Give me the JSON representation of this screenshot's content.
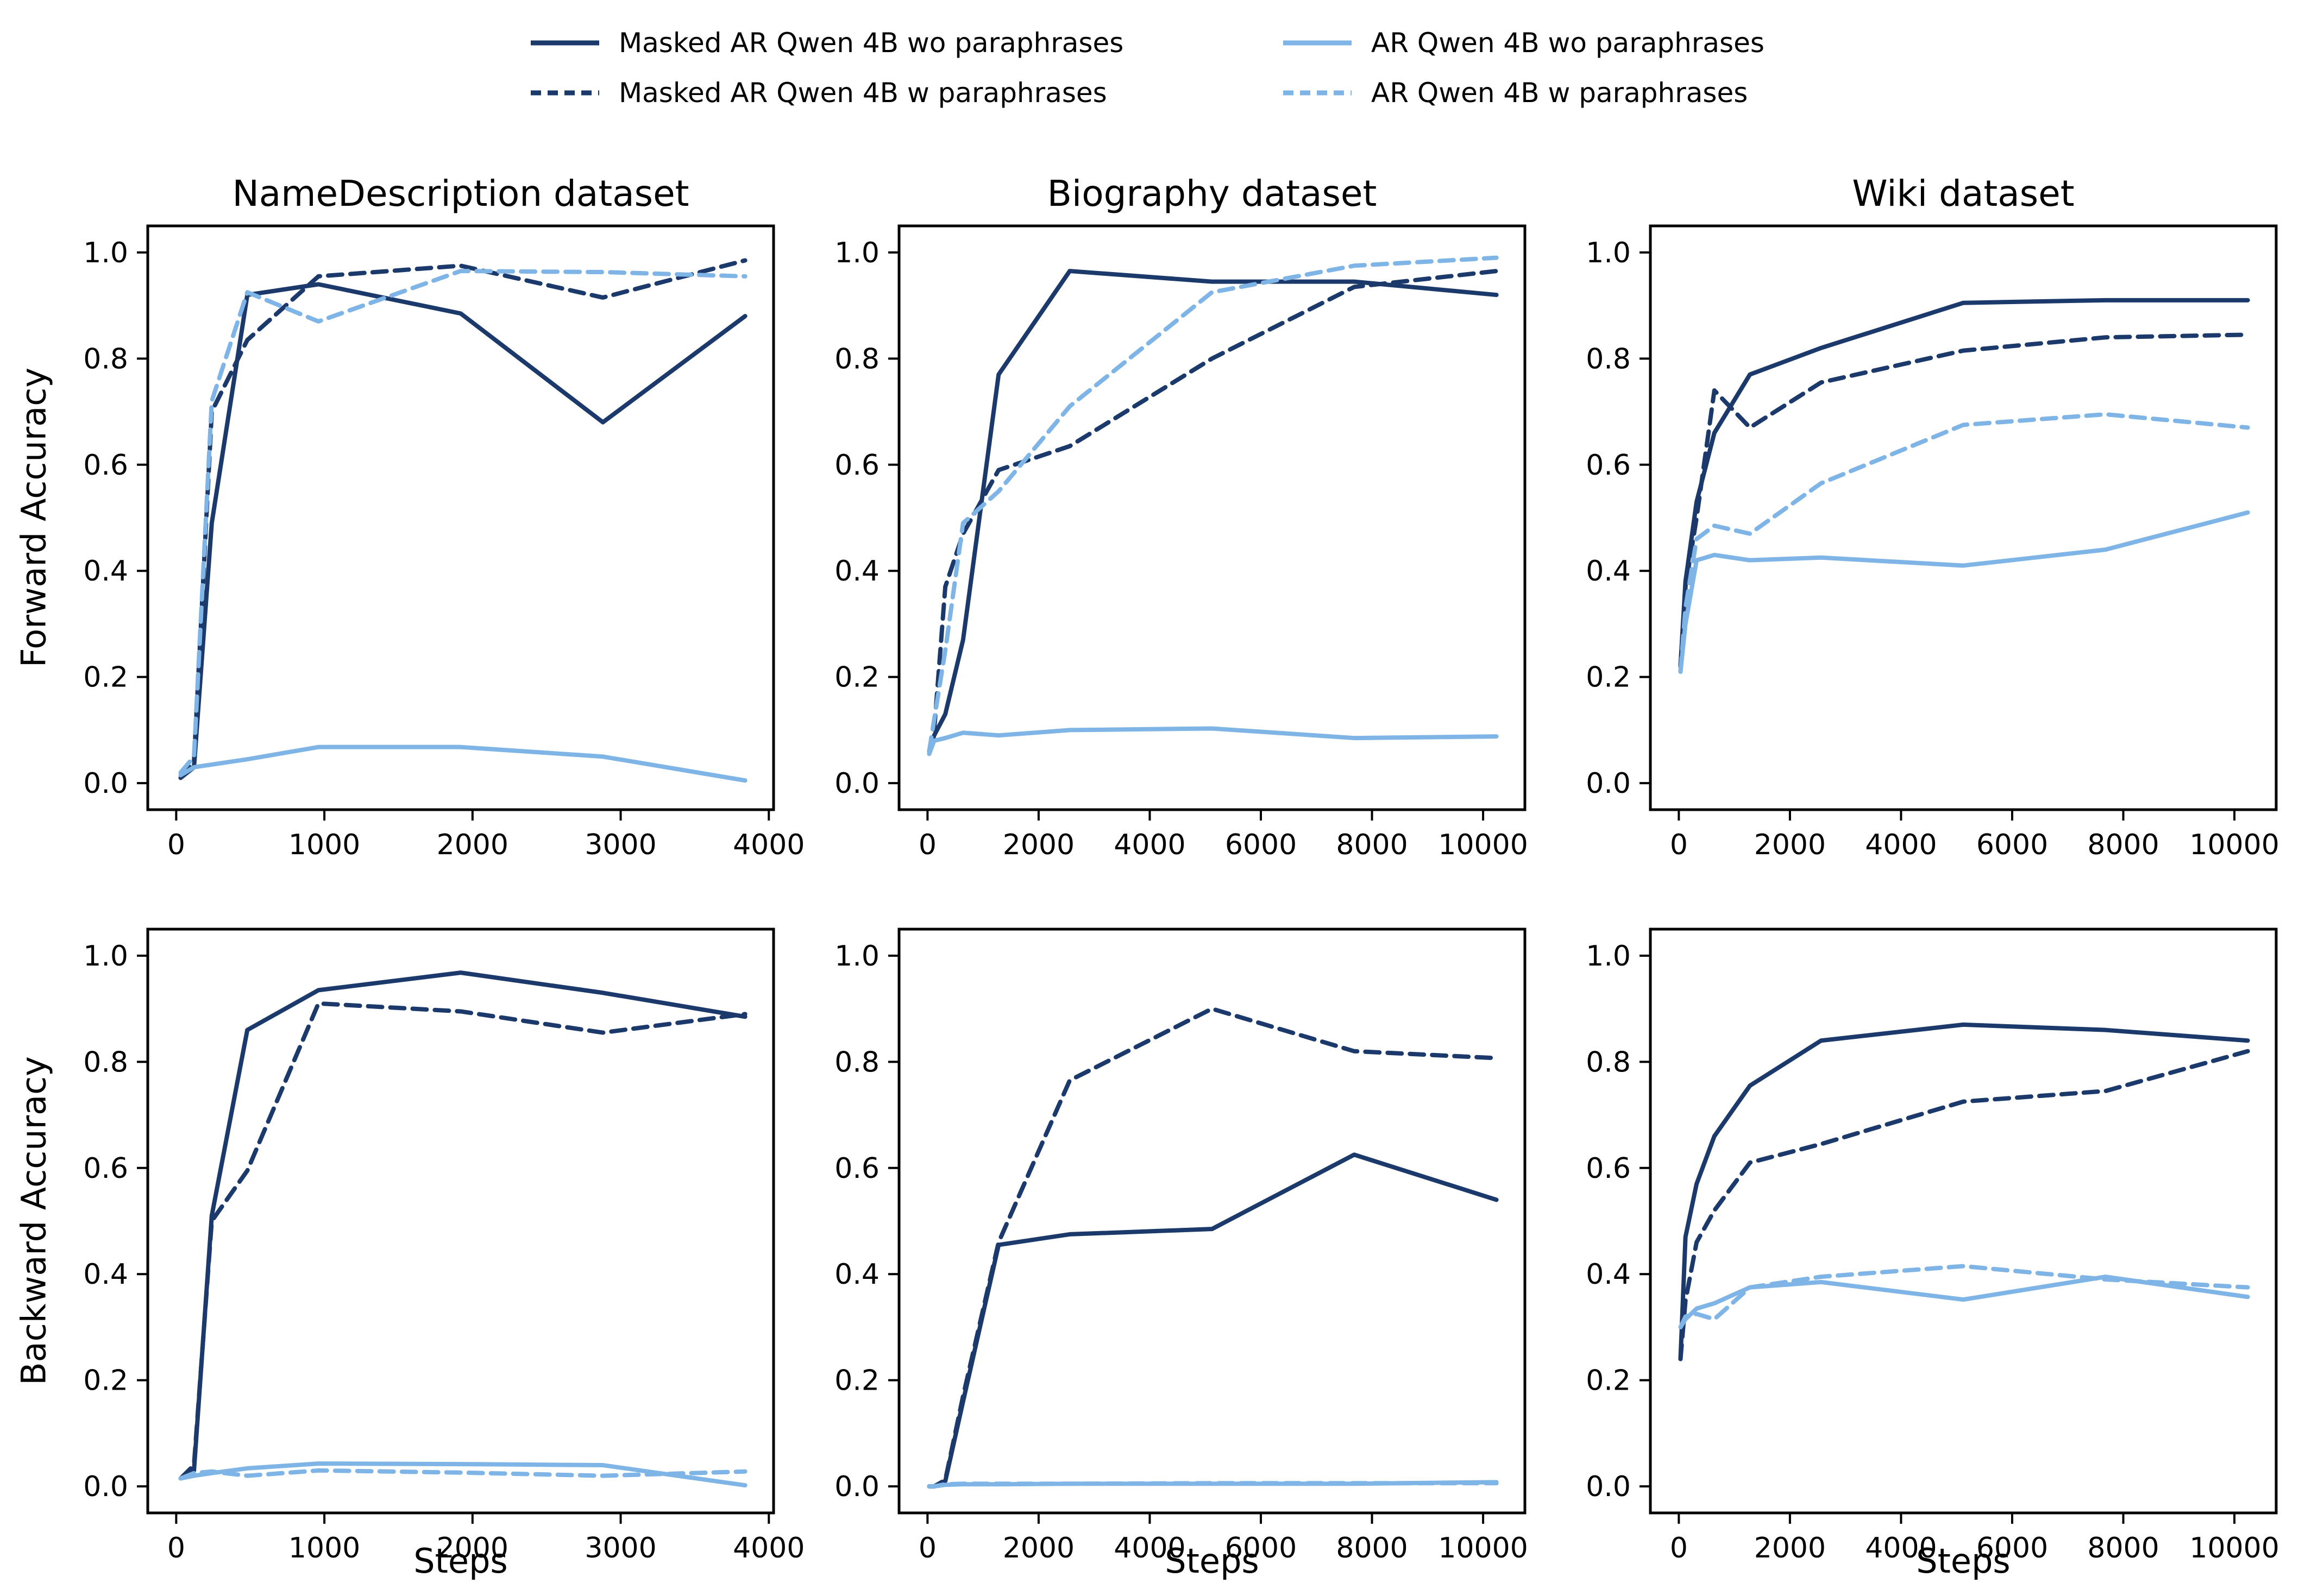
{
  "colors": {
    "dark_navy": "#1b3a6b",
    "light_blue": "#7fb5e6",
    "axis": "#000000",
    "background": "#ffffff"
  },
  "legend": {
    "items": [
      {
        "label": "Masked AR Qwen 4B wo paraphrases",
        "color": "dark_navy",
        "dashed": false
      },
      {
        "label": "Masked AR Qwen 4B w paraphrases",
        "color": "dark_navy",
        "dashed": true
      },
      {
        "label": "AR Qwen 4B wo paraphrases",
        "color": "light_blue",
        "dashed": false
      },
      {
        "label": "AR Qwen 4B w paraphrases",
        "color": "light_blue",
        "dashed": true
      }
    ]
  },
  "chart_data": [
    {
      "type": "line",
      "title": "NameDescription dataset",
      "ylabel": "Forward Accuracy",
      "xlabel": "",
      "xlim": [
        -192,
        4032
      ],
      "ylim": [
        -0.05,
        1.05
      ],
      "xticks": [
        0,
        1000,
        2000,
        3000,
        4000
      ],
      "yticks": [
        0.0,
        0.2,
        0.4,
        0.6,
        0.8,
        1.0
      ],
      "grid": false,
      "x": [
        30,
        120,
        240,
        480,
        960,
        1920,
        2880,
        3840
      ],
      "series": [
        {
          "name": "Masked AR Qwen 4B wo paraphrases",
          "color": "dark_navy",
          "dashed": false,
          "values": [
            0.01,
            0.03,
            0.49,
            0.92,
            0.94,
            0.885,
            0.68,
            0.88
          ]
        },
        {
          "name": "Masked AR Qwen 4B w paraphrases",
          "color": "dark_navy",
          "dashed": true,
          "values": [
            0.01,
            0.04,
            0.7,
            0.835,
            0.955,
            0.975,
            0.915,
            0.985
          ]
        },
        {
          "name": "AR Qwen 4B wo paraphrases",
          "color": "light_blue",
          "dashed": false,
          "values": [
            0.015,
            0.03,
            0.035,
            0.045,
            0.068,
            0.068,
            0.05,
            0.005
          ]
        },
        {
          "name": "AR Qwen 4B w paraphrases",
          "color": "light_blue",
          "dashed": true,
          "values": [
            0.02,
            0.05,
            0.72,
            0.925,
            0.87,
            0.965,
            0.963,
            0.955
          ]
        }
      ]
    },
    {
      "type": "line",
      "title": "Biography dataset",
      "ylabel": "",
      "xlabel": "",
      "xlim": [
        -512,
        10752
      ],
      "ylim": [
        -0.05,
        1.05
      ],
      "xticks": [
        0,
        2000,
        4000,
        6000,
        8000,
        10000
      ],
      "yticks": [
        0.0,
        0.2,
        0.4,
        0.6,
        0.8,
        1.0
      ],
      "grid": false,
      "x": [
        30,
        120,
        320,
        640,
        1280,
        2560,
        5120,
        7680,
        10240
      ],
      "series": [
        {
          "name": "Masked AR Qwen 4B wo paraphrases",
          "color": "dark_navy",
          "dashed": false,
          "values": [
            0.06,
            0.09,
            0.13,
            0.27,
            0.77,
            0.965,
            0.945,
            0.945,
            0.92
          ]
        },
        {
          "name": "Masked AR Qwen 4B w paraphrases",
          "color": "dark_navy",
          "dashed": true,
          "values": [
            0.06,
            0.1,
            0.37,
            0.47,
            0.59,
            0.635,
            0.8,
            0.935,
            0.965
          ]
        },
        {
          "name": "AR Qwen 4B wo paraphrases",
          "color": "light_blue",
          "dashed": false,
          "values": [
            0.055,
            0.08,
            0.085,
            0.095,
            0.09,
            0.1,
            0.103,
            0.085,
            0.088
          ]
        },
        {
          "name": "AR Qwen 4B w paraphrases",
          "color": "light_blue",
          "dashed": true,
          "values": [
            0.06,
            0.12,
            0.25,
            0.49,
            0.55,
            0.71,
            0.925,
            0.975,
            0.99
          ]
        }
      ]
    },
    {
      "type": "line",
      "title": "Wiki dataset",
      "ylabel": "",
      "xlabel": "",
      "xlim": [
        -512,
        10752
      ],
      "ylim": [
        -0.05,
        1.05
      ],
      "xticks": [
        0,
        2000,
        4000,
        6000,
        8000,
        10000
      ],
      "yticks": [
        0.0,
        0.2,
        0.4,
        0.6,
        0.8,
        1.0
      ],
      "grid": false,
      "x": [
        30,
        120,
        320,
        640,
        1280,
        2560,
        5120,
        7680,
        10240
      ],
      "series": [
        {
          "name": "Masked AR Qwen 4B wo paraphrases",
          "color": "dark_navy",
          "dashed": false,
          "values": [
            0.22,
            0.38,
            0.53,
            0.66,
            0.77,
            0.82,
            0.905,
            0.91,
            0.91
          ]
        },
        {
          "name": "Masked AR Qwen 4B w paraphrases",
          "color": "dark_navy",
          "dashed": true,
          "values": [
            0.22,
            0.37,
            0.5,
            0.74,
            0.67,
            0.755,
            0.815,
            0.84,
            0.845
          ]
        },
        {
          "name": "AR Qwen 4B wo paraphrases",
          "color": "light_blue",
          "dashed": false,
          "values": [
            0.21,
            0.3,
            0.42,
            0.43,
            0.42,
            0.425,
            0.41,
            0.44,
            0.51
          ]
        },
        {
          "name": "AR Qwen 4B w paraphrases",
          "color": "light_blue",
          "dashed": true,
          "values": [
            0.21,
            0.33,
            0.46,
            0.485,
            0.47,
            0.565,
            0.675,
            0.695,
            0.67
          ]
        }
      ]
    },
    {
      "type": "line",
      "title": "",
      "ylabel": "Backward Accuracy",
      "xlabel": "Steps",
      "xlim": [
        -192,
        4032
      ],
      "ylim": [
        -0.05,
        1.05
      ],
      "xticks": [
        0,
        1000,
        2000,
        3000,
        4000
      ],
      "yticks": [
        0.0,
        0.2,
        0.4,
        0.6,
        0.8,
        1.0
      ],
      "grid": false,
      "x": [
        30,
        120,
        240,
        480,
        960,
        1920,
        2880,
        3840
      ],
      "series": [
        {
          "name": "Masked AR Qwen 4B wo paraphrases",
          "color": "dark_navy",
          "dashed": false,
          "values": [
            0.015,
            0.03,
            0.51,
            0.86,
            0.935,
            0.968,
            0.93,
            0.885
          ]
        },
        {
          "name": "Masked AR Qwen 4B w paraphrases",
          "color": "dark_navy",
          "dashed": true,
          "values": [
            0.015,
            0.04,
            0.5,
            0.595,
            0.91,
            0.895,
            0.855,
            0.89
          ]
        },
        {
          "name": "AR Qwen 4B wo paraphrases",
          "color": "light_blue",
          "dashed": false,
          "values": [
            0.015,
            0.02,
            0.025,
            0.034,
            0.043,
            0.042,
            0.04,
            0.002
          ]
        },
        {
          "name": "AR Qwen 4B w paraphrases",
          "color": "light_blue",
          "dashed": true,
          "values": [
            0.015,
            0.025,
            0.028,
            0.02,
            0.03,
            0.026,
            0.02,
            0.028
          ]
        }
      ]
    },
    {
      "type": "line",
      "title": "",
      "ylabel": "",
      "xlabel": "Steps",
      "xlim": [
        -512,
        10752
      ],
      "ylim": [
        -0.05,
        1.05
      ],
      "xticks": [
        0,
        2000,
        4000,
        6000,
        8000,
        10000
      ],
      "yticks": [
        0.0,
        0.2,
        0.4,
        0.6,
        0.8,
        1.0
      ],
      "grid": false,
      "x": [
        30,
        120,
        320,
        640,
        1280,
        2560,
        5120,
        7680,
        10240
      ],
      "series": [
        {
          "name": "Masked AR Qwen 4B wo paraphrases",
          "color": "dark_navy",
          "dashed": false,
          "values": [
            0.0,
            0.0,
            0.01,
            0.16,
            0.455,
            0.475,
            0.485,
            0.625,
            0.54
          ]
        },
        {
          "name": "Masked AR Qwen 4B w paraphrases",
          "color": "dark_navy",
          "dashed": true,
          "values": [
            0.0,
            0.0,
            0.012,
            0.17,
            0.46,
            0.765,
            0.9,
            0.82,
            0.807
          ]
        },
        {
          "name": "AR Qwen 4B wo paraphrases",
          "color": "light_blue",
          "dashed": false,
          "values": [
            0.0,
            0.0,
            0.003,
            0.004,
            0.004,
            0.005,
            0.005,
            0.005,
            0.008
          ]
        },
        {
          "name": "AR Qwen 4B w paraphrases",
          "color": "light_blue",
          "dashed": true,
          "values": [
            0.0,
            0.0,
            0.004,
            0.005,
            0.005,
            0.005,
            0.006,
            0.006,
            0.006
          ]
        }
      ]
    },
    {
      "type": "line",
      "title": "",
      "ylabel": "",
      "xlabel": "Steps",
      "xlim": [
        -512,
        10752
      ],
      "ylim": [
        -0.05,
        1.05
      ],
      "xticks": [
        0,
        2000,
        4000,
        6000,
        8000,
        10000
      ],
      "yticks": [
        0.0,
        0.2,
        0.4,
        0.6,
        0.8,
        1.0
      ],
      "grid": false,
      "x": [
        30,
        120,
        320,
        640,
        1280,
        2560,
        5120,
        7680,
        10240
      ],
      "series": [
        {
          "name": "Masked AR Qwen 4B wo paraphrases",
          "color": "dark_navy",
          "dashed": false,
          "values": [
            0.24,
            0.47,
            0.57,
            0.66,
            0.755,
            0.84,
            0.87,
            0.86,
            0.84
          ]
        },
        {
          "name": "Masked AR Qwen 4B w paraphrases",
          "color": "dark_navy",
          "dashed": true,
          "values": [
            0.24,
            0.35,
            0.46,
            0.52,
            0.61,
            0.645,
            0.725,
            0.745,
            0.82
          ]
        },
        {
          "name": "AR Qwen 4B wo paraphrases",
          "color": "light_blue",
          "dashed": false,
          "values": [
            0.3,
            0.315,
            0.335,
            0.345,
            0.375,
            0.385,
            0.352,
            0.395,
            0.357
          ]
        },
        {
          "name": "AR Qwen 4B w paraphrases",
          "color": "light_blue",
          "dashed": true,
          "values": [
            0.3,
            0.32,
            0.325,
            0.315,
            0.375,
            0.395,
            0.415,
            0.39,
            0.375
          ]
        }
      ]
    }
  ]
}
